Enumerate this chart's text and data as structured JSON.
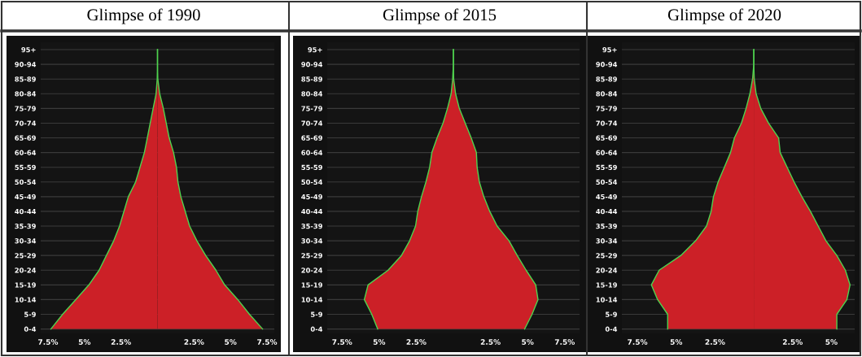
{
  "chart_data": [
    {
      "type": "area",
      "orientation": "horizontal",
      "title": "Glimpse of 1990",
      "categories": [
        "95+",
        "90-94",
        "85-89",
        "80-84",
        "75-79",
        "70-74",
        "65-69",
        "60-64",
        "55-59",
        "50-54",
        "45-49",
        "40-44",
        "35-39",
        "30-34",
        "25-29",
        "20-24",
        "15-19",
        "10-14",
        "5-9",
        "0-4"
      ],
      "series": [
        {
          "color": "#cc2027",
          "values": [
            0,
            0,
            -0.02,
            -0.1,
            -0.3,
            -0.5,
            -0.7,
            -0.9,
            -1.2,
            -1.5,
            -2.0,
            -2.3,
            -2.6,
            -3.0,
            -3.5,
            -4.0,
            -4.7,
            -5.6,
            -6.5,
            -7.3
          ]
        },
        {
          "color": "#cc2027",
          "values": [
            0,
            0,
            0.02,
            0.15,
            0.4,
            0.6,
            0.8,
            1.1,
            1.3,
            1.4,
            1.6,
            1.9,
            2.2,
            2.7,
            3.3,
            4.0,
            4.6,
            5.5,
            6.3,
            7.2
          ]
        }
      ],
      "xlim": [
        -8,
        8
      ],
      "xticks": [
        {
          "value": -7.5,
          "label": "7.5%"
        },
        {
          "value": -5,
          "label": "5%"
        },
        {
          "value": -2.5,
          "label": "2.5%"
        },
        {
          "value": 2.5,
          "label": "2.5%"
        },
        {
          "value": 5,
          "label": "5%"
        },
        {
          "value": 7.5,
          "label": "7.5%"
        }
      ],
      "grid": "y"
    },
    {
      "type": "area",
      "orientation": "horizontal",
      "title": "Glimpse of 2015",
      "categories": [
        "95+",
        "90-94",
        "85-89",
        "80-84",
        "75-79",
        "70-74",
        "65-69",
        "60-64",
        "55-59",
        "50-54",
        "45-49",
        "40-44",
        "35-39",
        "30-34",
        "25-29",
        "20-24",
        "15-19",
        "10-14",
        "5-9",
        "0-4"
      ],
      "series": [
        {
          "color": "#cc2027",
          "values": [
            0,
            0,
            -0.05,
            -0.15,
            -0.4,
            -0.7,
            -1.1,
            -1.45,
            -1.6,
            -1.85,
            -2.15,
            -2.4,
            -2.55,
            -2.95,
            -3.5,
            -4.4,
            -5.75,
            -6.0,
            -5.5,
            -5.1
          ]
        },
        {
          "color": "#cc2027",
          "values": [
            0,
            0,
            0.02,
            0.15,
            0.4,
            0.8,
            1.2,
            1.55,
            1.6,
            1.75,
            2.05,
            2.45,
            2.95,
            3.75,
            4.3,
            4.9,
            5.55,
            5.7,
            5.3,
            4.8
          ]
        }
      ],
      "xlim": [
        -8.5,
        8.5
      ],
      "xticks": [
        {
          "value": -7.5,
          "label": "7.5%"
        },
        {
          "value": -5,
          "label": "5%"
        },
        {
          "value": -2.5,
          "label": "2.5%"
        },
        {
          "value": 2.5,
          "label": "2.5%"
        },
        {
          "value": 5,
          "label": "5%"
        },
        {
          "value": 7.5,
          "label": "7.5%"
        }
      ],
      "grid": "y"
    },
    {
      "type": "area",
      "orientation": "horizontal",
      "title": "Glimpse of 2020",
      "categories": [
        "95+",
        "90-94",
        "85-89",
        "80-84",
        "75-79",
        "70-74",
        "65-69",
        "60-64",
        "55-59",
        "50-54",
        "45-49",
        "40-44",
        "35-39",
        "30-34",
        "25-29",
        "20-24",
        "15-19",
        "10-14",
        "5-9",
        "0-4"
      ],
      "series": [
        {
          "color": "#cc2027",
          "values": [
            0,
            0,
            -0.08,
            -0.25,
            -0.5,
            -0.8,
            -1.25,
            -1.5,
            -1.9,
            -2.3,
            -2.6,
            -2.75,
            -3.05,
            -3.75,
            -4.7,
            -6.1,
            -6.6,
            -6.2,
            -5.55,
            -5.55
          ]
        },
        {
          "color": "#cc2027",
          "values": [
            0,
            0,
            0.03,
            0.15,
            0.45,
            0.95,
            1.6,
            1.7,
            2.15,
            2.6,
            3.1,
            3.65,
            4.15,
            4.65,
            5.35,
            5.9,
            6.2,
            6.0,
            5.35,
            5.35
          ]
        }
      ],
      "xlim": [
        -8.5,
        6.5
      ],
      "xticks": [
        {
          "value": -7.5,
          "label": "7.5%"
        },
        {
          "value": -5,
          "label": "5%"
        },
        {
          "value": -2.5,
          "label": "2.5%"
        },
        {
          "value": 2.5,
          "label": "2.5%"
        },
        {
          "value": 5,
          "label": "5%"
        }
      ],
      "grid": "y"
    }
  ]
}
